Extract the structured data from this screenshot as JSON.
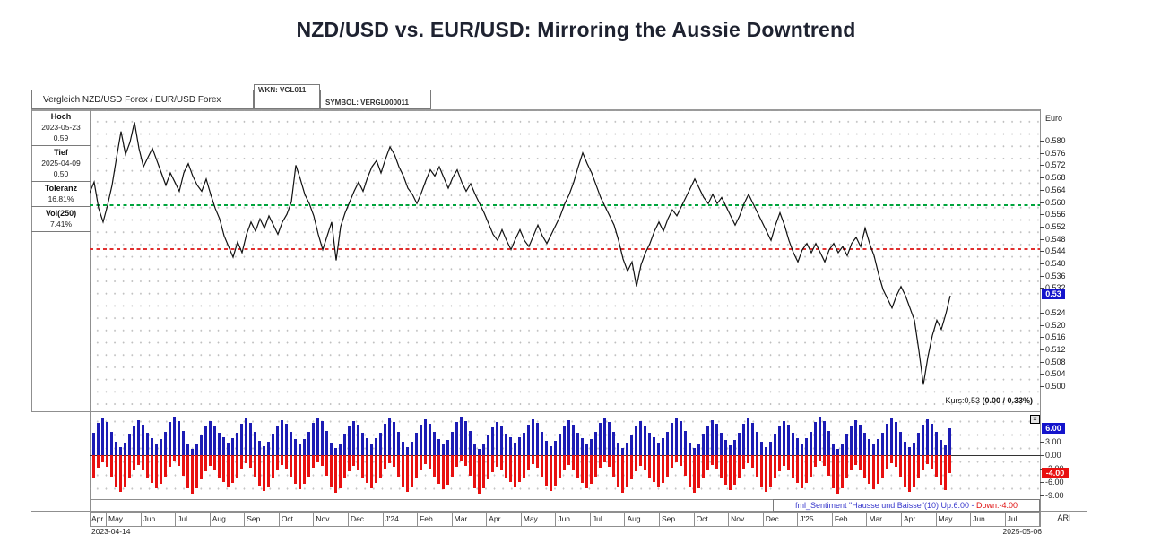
{
  "title": "NZD/USD vs. EUR/USD: Mirroring the Aussie Downtrend",
  "header": {
    "name": "Vergleich NZD/USD Forex / EUR/USD Forex",
    "wkn": "WKN: VGL011",
    "symbol": "SYMBOL: VERGL000011"
  },
  "info_panel": {
    "rows": [
      {
        "label": "Hoch",
        "lines": [
          "2023-05-23",
          "0.59"
        ]
      },
      {
        "label": "Tief",
        "lines": [
          "2025-04-09",
          "0.50"
        ]
      },
      {
        "label": "Toleranz",
        "lines": [
          "16.81%"
        ]
      },
      {
        "label": "Vol(250)",
        "lines": [
          "7.41%"
        ]
      }
    ]
  },
  "price_axis": {
    "currency": "Euro",
    "ticks": [
      0.58,
      0.576,
      0.572,
      0.568,
      0.564,
      0.56,
      0.556,
      0.552,
      0.548,
      0.544,
      0.54,
      0.536,
      0.532,
      0.524,
      0.52,
      0.516,
      0.512,
      0.508,
      0.504,
      0.5
    ],
    "last_price": "0.53"
  },
  "quote": {
    "kurs": "Kurs:0.53 ",
    "change": "(0.00 / 0.33%)"
  },
  "sentiment": {
    "footer_main": "fml_Sentiment \"Hausse und Baisse\"(10) Up:6.00 - ",
    "footer_down": "Down:-4.00",
    "axis_ticks": [
      3,
      0,
      -3,
      -6,
      -9
    ],
    "badge_up": "6.00",
    "badge_down": "-4.00",
    "close_glyph": "×"
  },
  "footer": {
    "start_date": "2023-04-14",
    "end_date": "2025-05-06",
    "right_label": "ARI"
  },
  "months": [
    "Apr",
    "May",
    "Jun",
    "Jul",
    "Aug",
    "Sep",
    "Oct",
    "Nov",
    "Dec",
    "J'24",
    "Feb",
    "Mar",
    "Apr",
    "May",
    "Jun",
    "Jul",
    "Aug",
    "Sep",
    "Oct",
    "Nov",
    "Dec",
    "J'25",
    "Feb",
    "Mar",
    "Apr",
    "May",
    "Jun",
    "Jul"
  ],
  "colors": {
    "bar_up": "#1c1cb4",
    "bar_down": "#e81010",
    "resistance_line": "#00a43c",
    "support_line": "#e03030",
    "badge_blue": "#1414cc",
    "badge_red": "#e81010",
    "price_line": "#111111"
  },
  "chart_data": [
    {
      "type": "line",
      "title": "Vergleich NZD/USD Forex / EUR/USD Forex",
      "ylabel": "Euro",
      "x_start": "2023-04-14",
      "x_end": "2025-05-06",
      "ylim": [
        0.4965,
        0.59
      ],
      "y_tick_step": 0.004,
      "resistance_level": 0.559,
      "support_level": 0.545,
      "last_price": 0.53,
      "high": {
        "date": "2023-05-23",
        "value": 0.59
      },
      "low": {
        "date": "2025-04-09",
        "value": 0.5
      },
      "prices": [
        0.563,
        0.5665,
        0.558,
        0.5535,
        0.559,
        0.5655,
        0.5745,
        0.583,
        0.5755,
        0.5795,
        0.586,
        0.5775,
        0.5715,
        0.5745,
        0.5775,
        0.5735,
        0.5695,
        0.5655,
        0.5695,
        0.5665,
        0.5635,
        0.5695,
        0.5725,
        0.5685,
        0.5655,
        0.5635,
        0.5675,
        0.5625,
        0.558,
        0.5545,
        0.549,
        0.5455,
        0.542,
        0.547,
        0.5435,
        0.5495,
        0.5535,
        0.5505,
        0.5545,
        0.5515,
        0.5555,
        0.5525,
        0.5495,
        0.5535,
        0.556,
        0.56,
        0.572,
        0.5675,
        0.5625,
        0.5595,
        0.5555,
        0.5495,
        0.5445,
        0.549,
        0.5535,
        0.541,
        0.552,
        0.5565,
        0.56,
        0.5635,
        0.5665,
        0.5635,
        0.568,
        0.5715,
        0.5735,
        0.5695,
        0.574,
        0.578,
        0.5755,
        0.5715,
        0.5685,
        0.5645,
        0.5625,
        0.5595,
        0.563,
        0.567,
        0.5705,
        0.5685,
        0.5715,
        0.568,
        0.5645,
        0.568,
        0.5705,
        0.5665,
        0.5635,
        0.566,
        0.5625,
        0.5595,
        0.5565,
        0.553,
        0.5495,
        0.5475,
        0.551,
        0.5475,
        0.5445,
        0.548,
        0.551,
        0.5475,
        0.5455,
        0.549,
        0.5525,
        0.549,
        0.5465,
        0.5495,
        0.5525,
        0.5555,
        0.5595,
        0.5625,
        0.5665,
        0.5715,
        0.576,
        0.5725,
        0.5695,
        0.5655,
        0.5615,
        0.5585,
        0.5555,
        0.5525,
        0.5475,
        0.5415,
        0.5375,
        0.5405,
        0.5325,
        0.5395,
        0.5435,
        0.5465,
        0.5505,
        0.5535,
        0.5505,
        0.5545,
        0.5575,
        0.5555,
        0.5585,
        0.5615,
        0.5645,
        0.5675,
        0.5645,
        0.5615,
        0.5595,
        0.5625,
        0.5595,
        0.5615,
        0.5585,
        0.5555,
        0.5525,
        0.5555,
        0.5595,
        0.5625,
        0.5595,
        0.5565,
        0.5535,
        0.5505,
        0.5475,
        0.5525,
        0.5565,
        0.5525,
        0.5475,
        0.5435,
        0.5405,
        0.5445,
        0.5465,
        0.5435,
        0.5465,
        0.5435,
        0.5405,
        0.5445,
        0.5465,
        0.5435,
        0.5455,
        0.5425,
        0.5465,
        0.5485,
        0.5455,
        0.5515,
        0.5465,
        0.5425,
        0.5365,
        0.5315,
        0.5285,
        0.5255,
        0.5295,
        0.5325,
        0.5295,
        0.5255,
        0.5215,
        0.5115,
        0.5005,
        0.5095,
        0.5165,
        0.5215,
        0.5185,
        0.5235,
        0.5295
      ]
    },
    {
      "type": "bar",
      "title": "fml_Sentiment \"Hausse und Baisse\"(10)",
      "up_current": 6.0,
      "down_current": -4.0,
      "ylim": [
        -10,
        9.5
      ],
      "down_formula": "down = up - 10",
      "up": [
        5.0,
        7.2,
        8.4,
        7.5,
        5.2,
        3.0,
        1.8,
        2.9,
        4.8,
        6.6,
        7.8,
        6.9,
        5.1,
        3.8,
        2.6,
        3.7,
        5.2,
        7.4,
        8.6,
        7.7,
        5.4,
        2.7,
        1.5,
        2.6,
        4.7,
        6.4,
        7.6,
        6.7,
        5.0,
        4.0,
        2.8,
        3.9,
        5.1,
        7.0,
        8.2,
        7.3,
        5.3,
        3.2,
        2.0,
        3.1,
        4.9,
        6.7,
        7.9,
        7.0,
        5.2,
        3.7,
        2.5,
        3.6,
        5.3,
        7.3,
        8.5,
        7.6,
        5.4,
        2.8,
        1.6,
        2.7,
        4.8,
        6.5,
        7.7,
        6.8,
        5.0,
        3.9,
        2.7,
        3.8,
        5.1,
        7.1,
        8.3,
        7.4,
        5.3,
        3.1,
        1.9,
        3.0,
        5.0,
        6.8,
        8.0,
        7.1,
        5.2,
        3.6,
        2.4,
        3.5,
        5.2,
        7.4,
        8.6,
        7.7,
        5.4,
        2.7,
        1.5,
        2.6,
        4.7,
        6.3,
        7.5,
        6.6,
        4.9,
        4.1,
        2.9,
        4.0,
        5.0,
        6.9,
        8.1,
        7.2,
        5.2,
        3.3,
        2.1,
        3.2,
        4.8,
        6.6,
        7.8,
        6.9,
        5.1,
        3.8,
        2.6,
        3.7,
        5.2,
        7.2,
        8.4,
        7.5,
        5.3,
        2.9,
        1.7,
        2.8,
        4.7,
        6.4,
        7.6,
        6.7,
        5.0,
        4.0,
        2.8,
        3.9,
        5.3,
        7.3,
        8.5,
        7.6,
        5.4,
        2.8,
        1.6,
        2.7,
        4.9,
        6.7,
        7.9,
        7.0,
        5.1,
        3.5,
        2.3,
        3.4,
        5.1,
        7.0,
        8.2,
        7.3,
        5.2,
        3.1,
        1.9,
        3.0,
        4.8,
        6.5,
        7.7,
        6.8,
        5.0,
        3.9,
        2.7,
        3.8,
        5.2,
        7.4,
        8.6,
        7.7,
        5.4,
        2.7,
        1.5,
        2.6,
        4.9,
        6.6,
        7.8,
        6.9,
        5.1,
        3.7,
        2.5,
        3.6,
        5.1,
        7.1,
        8.3,
        7.4,
        5.3,
        3.0,
        1.8,
        2.9,
        5.0,
        6.8,
        8.0,
        7.1,
        5.2,
        3.4,
        2.2,
        6.0
      ]
    }
  ]
}
